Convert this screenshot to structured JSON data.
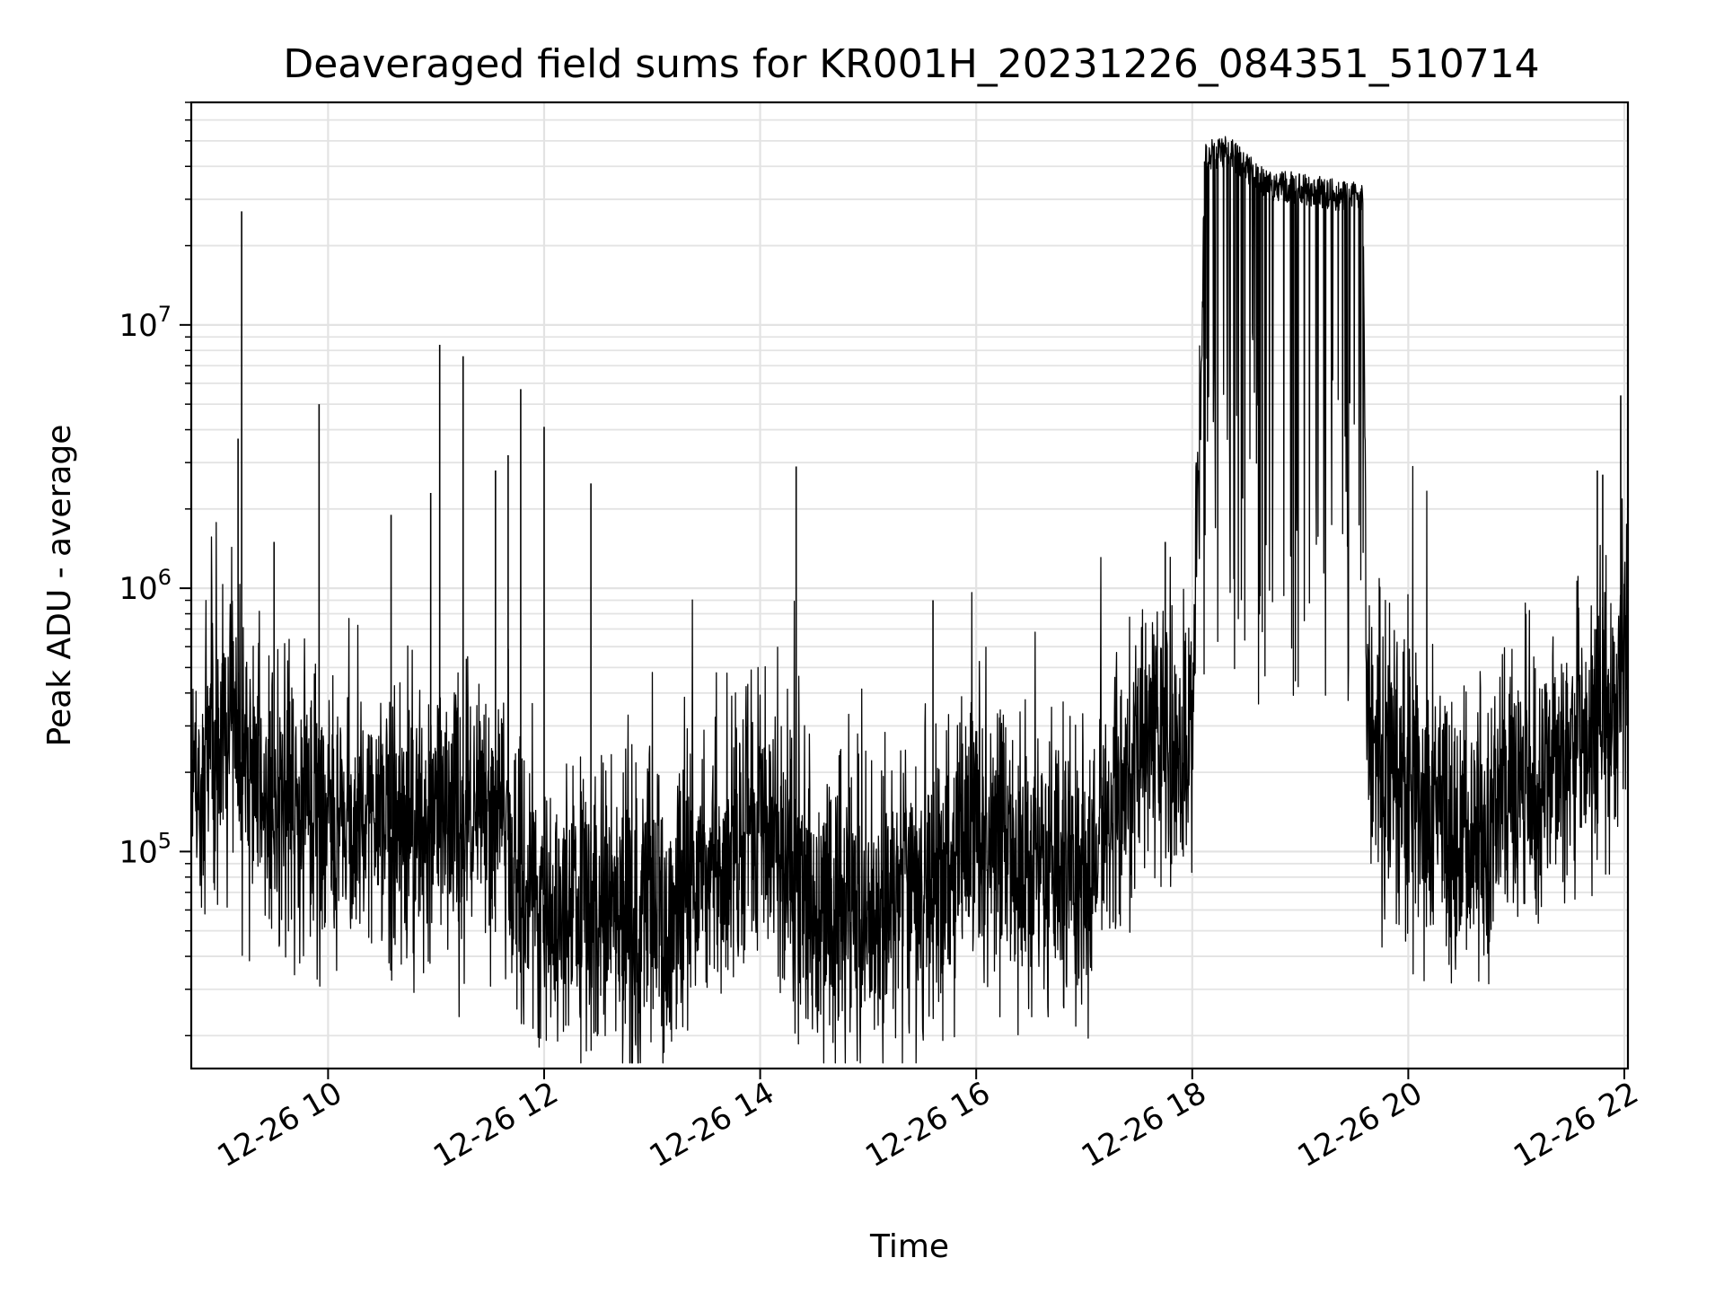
{
  "chart_data": {
    "type": "line",
    "title": "Deaveraged field sums for KR001H_20231226_084351_510714",
    "xlabel": "Time",
    "ylabel": "Peak ADU - average",
    "yscale": "log",
    "xlim": [
      "12-26 08:44",
      "12-26 22:02"
    ],
    "ylim": [
      15000,
      70000000
    ],
    "grid": true,
    "x_ticks": [
      "12-26 10",
      "12-26 12",
      "12-26 14",
      "12-26 16",
      "12-26 18",
      "12-26 20",
      "12-26 22"
    ],
    "y_ticks": [
      {
        "label": "10",
        "exp": "5",
        "value": 100000
      },
      {
        "label": "10",
        "exp": "6",
        "value": 1000000
      },
      {
        "label": "10",
        "exp": "7",
        "value": 10000000
      }
    ],
    "line_color": "#000000",
    "series_segments": [
      {
        "t": "08:44",
        "v": 150000
      },
      {
        "t": "09:00",
        "v": 280000
      },
      {
        "t": "09:30",
        "v": 160000
      },
      {
        "t": "10:00",
        "v": 140000
      },
      {
        "t": "10:30",
        "v": 120000
      },
      {
        "t": "11:00",
        "v": 130000
      },
      {
        "t": "11:30",
        "v": 150000
      },
      {
        "t": "11:55",
        "v": 70000
      },
      {
        "t": "12:30",
        "v": 60000
      },
      {
        "t": "13:00",
        "v": 55000
      },
      {
        "t": "13:30",
        "v": 70000
      },
      {
        "t": "14:00",
        "v": 130000
      },
      {
        "t": "14:30",
        "v": 60000
      },
      {
        "t": "15:00",
        "v": 55000
      },
      {
        "t": "15:30",
        "v": 70000
      },
      {
        "t": "16:00",
        "v": 130000
      },
      {
        "t": "16:30",
        "v": 90000
      },
      {
        "t": "17:00",
        "v": 80000
      },
      {
        "t": "17:30",
        "v": 240000
      },
      {
        "t": "18:00",
        "v": 250000
      },
      {
        "t": "18:07",
        "v": 44000000
      },
      {
        "t": "18:20",
        "v": 46000000
      },
      {
        "t": "18:40",
        "v": 34000000
      },
      {
        "t": "19:00",
        "v": 33000000
      },
      {
        "t": "19:20",
        "v": 31000000
      },
      {
        "t": "19:35",
        "v": 30000000
      },
      {
        "t": "19:37",
        "v": 220000
      },
      {
        "t": "20:00",
        "v": 170000
      },
      {
        "t": "20:30",
        "v": 110000
      },
      {
        "t": "21:00",
        "v": 180000
      },
      {
        "t": "21:30",
        "v": 200000
      },
      {
        "t": "22:00",
        "v": 550000
      }
    ],
    "spikes": [
      {
        "t": "09:12",
        "v": 27000000
      },
      {
        "t": "09:10",
        "v": 3700000
      },
      {
        "t": "09:30",
        "v": 1500000
      },
      {
        "t": "09:55",
        "v": 5000000
      },
      {
        "t": "10:35",
        "v": 1900000
      },
      {
        "t": "10:57",
        "v": 2300000
      },
      {
        "t": "11:02",
        "v": 8400000
      },
      {
        "t": "11:15",
        "v": 7600000
      },
      {
        "t": "11:33",
        "v": 2800000
      },
      {
        "t": "11:40",
        "v": 3200000
      },
      {
        "t": "11:47",
        "v": 5700000
      },
      {
        "t": "12:00",
        "v": 4100000
      },
      {
        "t": "12:26",
        "v": 2500000
      },
      {
        "t": "14:20",
        "v": 2900000
      },
      {
        "t": "15:36",
        "v": 900000
      },
      {
        "t": "17:45",
        "v": 1500000
      },
      {
        "t": "21:45",
        "v": 2800000
      },
      {
        "t": "21:48",
        "v": 2700000
      },
      {
        "t": "21:58",
        "v": 5400000
      }
    ]
  }
}
